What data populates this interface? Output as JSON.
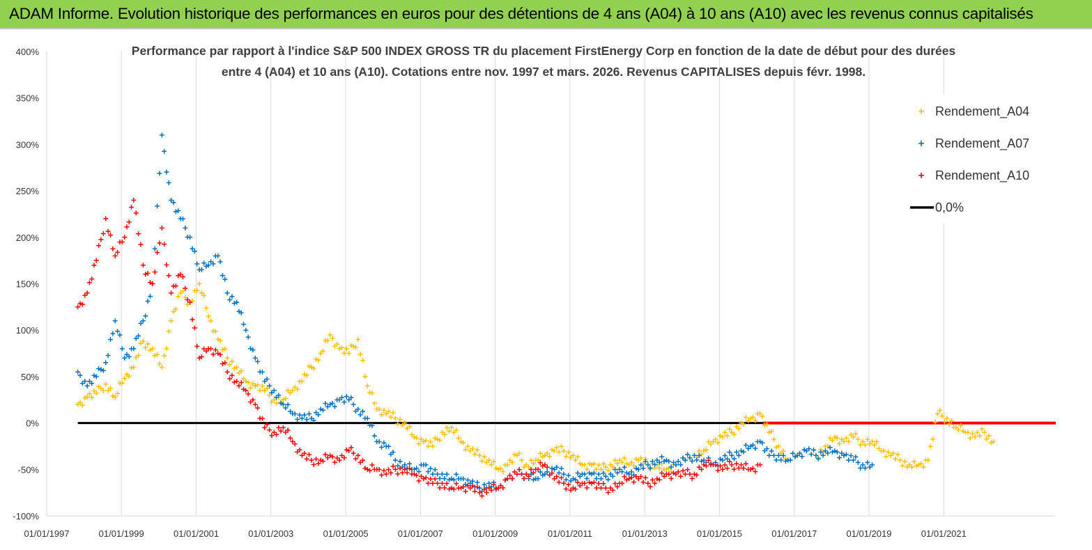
{
  "banner": {
    "title": "ADAM Informe. Evolution historique des performances en euros pour des détentions de 4 ans (A04) à 10 ans (A10) avec les revenus connus capitalisés"
  },
  "colors": {
    "banner_bg": "#92d050",
    "A04": "#ffc000",
    "A07": "#0070c0",
    "A10": "#ff0000",
    "zero_line": "#000000",
    "grid": "#d9d9d9"
  },
  "chart_data": {
    "type": "scatter",
    "title_line1": "Performance par rapport à l'indice S&P 500 INDEX GROSS TR  du placement FirstEnergy Corp en fonction de la date de début pour des durées",
    "title_line2": "entre 4 (A04) et 10 ans (A10). Cotations entre nov. 1997 et mars. 2026. Revenus CAPITALISES depuis févr. 1998.",
    "xlabel": "",
    "ylabel": "",
    "x_range": [
      "1997-01-01",
      "2023-12-31"
    ],
    "ylim": [
      -100,
      400
    ],
    "y_ticks": [
      "400%",
      "350%",
      "300%",
      "250%",
      "200%",
      "150%",
      "100%",
      "50%",
      "0%",
      "-50%",
      "-100%"
    ],
    "x_ticks": [
      "01/01/1997",
      "01/01/1999",
      "01/01/2001",
      "01/01/2003",
      "01/01/2005",
      "01/01/2007",
      "01/01/2009",
      "01/01/2011",
      "01/01/2013",
      "01/01/2015",
      "01/01/2017",
      "01/01/2019",
      "01/01/2021"
    ],
    "grid": "vertical",
    "legend_position": "top-right",
    "marker": "+",
    "series": [
      {
        "name": "Rendement_A04",
        "color": "#ffc000",
        "x": [
          "1997-11-01",
          "1998-02-01",
          "1998-05-01",
          "1998-08-01",
          "1998-11-01",
          "1999-02-01",
          "1999-05-01",
          "1999-08-01",
          "1999-11-01",
          "2000-02-01",
          "2000-05-01",
          "2000-08-01",
          "2000-11-01",
          "2001-02-01",
          "2001-05-01",
          "2001-08-01",
          "2001-11-01",
          "2002-02-01",
          "2002-05-01",
          "2002-08-01",
          "2002-11-01",
          "2003-02-01",
          "2003-05-01",
          "2003-08-01",
          "2003-11-01",
          "2004-02-01",
          "2004-05-01",
          "2004-08-01",
          "2004-11-01",
          "2005-02-01",
          "2005-05-01",
          "2005-08-01",
          "2005-11-01",
          "2006-02-01",
          "2006-05-01",
          "2006-08-01",
          "2006-11-01",
          "2007-02-01",
          "2007-05-01",
          "2007-08-01",
          "2007-11-01",
          "2008-02-01",
          "2008-05-01",
          "2008-08-01",
          "2008-11-01",
          "2009-02-01",
          "2009-05-01",
          "2009-08-01",
          "2009-11-01",
          "2010-02-01",
          "2010-05-01",
          "2010-08-01",
          "2010-11-01",
          "2011-02-01",
          "2011-05-01",
          "2011-08-01",
          "2011-11-01",
          "2012-02-01",
          "2012-05-01",
          "2012-08-01",
          "2012-11-01",
          "2013-02-01",
          "2013-05-01",
          "2013-08-01",
          "2013-11-01",
          "2014-02-01",
          "2014-05-01",
          "2014-08-01",
          "2014-11-01",
          "2015-02-01",
          "2015-05-01",
          "2015-08-01",
          "2015-11-01",
          "2016-02-01",
          "2016-05-01",
          "2016-08-01",
          "2016-11-01",
          "2017-02-01",
          "2017-05-01",
          "2017-08-01",
          "2017-11-01",
          "2018-02-01",
          "2018-05-01",
          "2018-08-01",
          "2018-11-01",
          "2019-02-01",
          "2019-05-01",
          "2019-08-01",
          "2019-11-01",
          "2020-02-01",
          "2020-05-01",
          "2020-08-01",
          "2020-11-01",
          "2021-02-01",
          "2021-05-01",
          "2021-08-01",
          "2021-11-01",
          "2022-02-01",
          "2022-05-01"
        ],
        "y": [
          20,
          28,
          32,
          42,
          28,
          48,
          60,
          88,
          80,
          60,
          110,
          140,
          130,
          150,
          115,
          90,
          70,
          60,
          45,
          40,
          35,
          25,
          25,
          35,
          45,
          60,
          75,
          95,
          80,
          75,
          90,
          40,
          15,
          10,
          5,
          0,
          -15,
          -20,
          -25,
          -10,
          -5,
          -20,
          -30,
          -35,
          -40,
          -50,
          -45,
          -35,
          -45,
          -40,
          -35,
          -30,
          -30,
          -35,
          -45,
          -45,
          -50,
          -45,
          -40,
          -45,
          -40,
          -45,
          -45,
          -50,
          -45,
          -40,
          -35,
          -30,
          -20,
          -15,
          -10,
          0,
          5,
          10,
          -10,
          -25,
          -40,
          -35,
          -30,
          -35,
          -25,
          -15,
          -20,
          -15,
          -20,
          -20,
          -30,
          -35,
          -40,
          -45,
          -45,
          -40,
          10,
          5,
          -5,
          -10,
          -15,
          -10,
          -20
        ]
      },
      {
        "name": "Rendement_A07",
        "color": "#0070c0",
        "x": [
          "1997-11-01",
          "1998-02-01",
          "1998-05-01",
          "1998-08-01",
          "1998-11-01",
          "1999-02-01",
          "1999-05-01",
          "1999-08-01",
          "1999-11-01",
          "2000-02-01",
          "2000-05-01",
          "2000-08-01",
          "2000-11-01",
          "2001-02-01",
          "2001-05-01",
          "2001-08-01",
          "2001-11-01",
          "2002-02-01",
          "2002-05-01",
          "2002-08-01",
          "2002-11-01",
          "2003-02-01",
          "2003-05-01",
          "2003-08-01",
          "2003-11-01",
          "2004-02-01",
          "2004-05-01",
          "2004-08-01",
          "2004-11-01",
          "2005-02-01",
          "2005-05-01",
          "2005-08-01",
          "2005-11-01",
          "2006-02-01",
          "2006-05-01",
          "2006-08-01",
          "2006-11-01",
          "2007-02-01",
          "2007-05-01",
          "2007-08-01",
          "2007-11-01",
          "2008-02-01",
          "2008-05-01",
          "2008-08-01",
          "2008-11-01",
          "2009-02-01",
          "2009-05-01",
          "2009-08-01",
          "2009-11-01",
          "2010-02-01",
          "2010-05-01",
          "2010-08-01",
          "2010-11-01",
          "2011-02-01",
          "2011-05-01",
          "2011-08-01",
          "2011-11-01",
          "2012-02-01",
          "2012-05-01",
          "2012-08-01",
          "2012-11-01",
          "2013-02-01",
          "2013-05-01",
          "2013-08-01",
          "2013-11-01",
          "2014-02-01",
          "2014-05-01",
          "2014-08-01",
          "2014-11-01",
          "2015-02-01",
          "2015-05-01",
          "2015-08-01",
          "2015-11-01",
          "2016-02-01",
          "2016-05-01",
          "2016-08-01",
          "2016-11-01",
          "2017-02-01",
          "2017-05-01",
          "2017-08-01",
          "2017-11-01",
          "2018-02-01",
          "2018-05-01",
          "2018-08-01",
          "2018-11-01",
          "2019-02-01"
        ],
        "y": [
          55,
          40,
          50,
          65,
          110,
          70,
          80,
          110,
          150,
          310,
          240,
          220,
          200,
          165,
          170,
          180,
          140,
          130,
          100,
          70,
          45,
          35,
          20,
          10,
          5,
          5,
          15,
          20,
          25,
          25,
          15,
          5,
          -20,
          -25,
          -40,
          -45,
          -50,
          -45,
          -55,
          -55,
          -60,
          -60,
          -65,
          -70,
          -65,
          -70,
          -60,
          -55,
          -55,
          -60,
          -55,
          -50,
          -55,
          -60,
          -55,
          -55,
          -60,
          -55,
          -50,
          -55,
          -50,
          -45,
          -40,
          -40,
          -45,
          -40,
          -35,
          -40,
          -45,
          -40,
          -35,
          -30,
          -25,
          -20,
          -35,
          -35,
          -40,
          -35,
          -30,
          -35,
          -30,
          -30,
          -35,
          -40,
          -45,
          -45
        ]
      },
      {
        "name": "Rendement_A10",
        "color": "#ff0000",
        "x": [
          "1997-11-01",
          "1998-02-01",
          "1998-05-01",
          "1998-08-01",
          "1998-11-01",
          "1999-02-01",
          "1999-05-01",
          "1999-08-01",
          "1999-11-01",
          "2000-02-01",
          "2000-05-01",
          "2000-08-01",
          "2000-11-01",
          "2001-02-01",
          "2001-05-01",
          "2001-08-01",
          "2001-11-01",
          "2002-02-01",
          "2002-05-01",
          "2002-08-01",
          "2002-11-01",
          "2003-02-01",
          "2003-05-01",
          "2003-08-01",
          "2003-11-01",
          "2004-02-01",
          "2004-05-01",
          "2004-08-01",
          "2004-11-01",
          "2005-02-01",
          "2005-05-01",
          "2005-08-01",
          "2005-11-01",
          "2006-02-01",
          "2006-05-01",
          "2006-08-01",
          "2006-11-01",
          "2007-02-01",
          "2007-05-01",
          "2007-08-01",
          "2007-11-01",
          "2008-02-01",
          "2008-05-01",
          "2008-08-01",
          "2008-11-01",
          "2009-02-01",
          "2009-05-01",
          "2009-08-01",
          "2009-11-01",
          "2010-02-01",
          "2010-05-01",
          "2010-08-01",
          "2010-11-01",
          "2011-02-01",
          "2011-05-01",
          "2011-08-01",
          "2011-11-01",
          "2012-02-01",
          "2012-05-01",
          "2012-08-01",
          "2012-11-01",
          "2013-02-01",
          "2013-05-01",
          "2013-08-01",
          "2013-11-01",
          "2014-02-01",
          "2014-05-01",
          "2014-08-01",
          "2014-11-01",
          "2015-02-01",
          "2015-05-01",
          "2015-08-01",
          "2015-11-01",
          "2016-02-01"
        ],
        "y": [
          125,
          140,
          175,
          220,
          180,
          200,
          240,
          170,
          150,
          210,
          140,
          160,
          130,
          70,
          80,
          75,
          55,
          45,
          35,
          20,
          -5,
          -10,
          -5,
          -20,
          -35,
          -40,
          -40,
          -35,
          -40,
          -30,
          -35,
          -50,
          -50,
          -55,
          -50,
          -50,
          -55,
          -60,
          -65,
          -65,
          -70,
          -70,
          -70,
          -75,
          -70,
          -70,
          -60,
          -55,
          -55,
          -50,
          -45,
          -60,
          -65,
          -70,
          -65,
          -65,
          -70,
          -70,
          -65,
          -60,
          -60,
          -65,
          -60,
          -55,
          -55,
          -55,
          -55,
          -45,
          -45,
          -50,
          -45,
          -45,
          -50,
          -45
        ]
      }
    ],
    "legend": [
      {
        "label": "Rendement_A04",
        "series": "A04"
      },
      {
        "label": "Rendement_A07",
        "series": "A07"
      },
      {
        "label": "Rendement_A10",
        "series": "A10"
      },
      {
        "label": "0,0%",
        "series": "zero"
      }
    ],
    "zero_line": {
      "value": 0,
      "from": "1997-11-01",
      "to": "2023-12-31"
    },
    "a10_flat_segment": {
      "value": 0,
      "from": "2016-03-01",
      "to": "2023-12-31"
    }
  }
}
